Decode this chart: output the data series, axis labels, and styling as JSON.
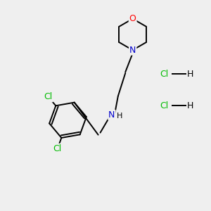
{
  "background_color": "#efefef",
  "bond_color": "#000000",
  "atom_colors": {
    "O": "#ff0000",
    "N": "#0000cc",
    "Cl_label": "#00bb00",
    "H": "#000000",
    "C": "#000000"
  },
  "font_size_atoms": 9,
  "font_size_hcl": 9,
  "lw": 1.4
}
